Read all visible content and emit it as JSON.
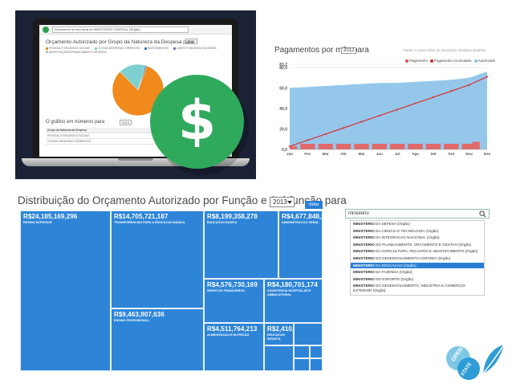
{
  "laptop": {
    "search_placeholder": "Orçamento ao seu alcance",
    "search_value": "MINISTÉRIO FEDERAL (Órgão)",
    "title": "Orçamento Autorizado por Grupo da Natureza da Despesa para",
    "year": "2013",
    "legend": [
      "PESSOAL E ENCARGOS SOCIAIS",
      "OUTRAS DESPESAS CORRENTES",
      "INVESTIMENTOS",
      "JUROS E ENCARGOS DA DÍVIDA",
      "AMORTIZAÇÃO/REFINANCIAMENTO DA DÍVIDA"
    ],
    "legend_colors": [
      "#f08a1c",
      "#7ecfcf",
      "#2e7bbf",
      "#8a6bb5",
      "#c0c0c0"
    ],
    "pie": [
      0.82,
      0.17,
      0.01
    ],
    "subtitle": "O gráfico em números para",
    "year2": "2013",
    "table_header": "Grupo da Natureza da Despesa",
    "table_rows": [
      "PESSOAL E ENCARGOS SOCIAIS",
      "OUTRAS DESPESAS CORRENTES"
    ]
  },
  "badge": {
    "icon": "dollar-icon",
    "symbol": "$",
    "color": "#2faa5d"
  },
  "payments": {
    "title": "Pagamentos por mês para",
    "year": "2012",
    "hint": "Passe o cursor sobre as áreas para visualizar detalhes",
    "legend": [
      {
        "name": "Pagamento",
        "color": "#d9534f"
      },
      {
        "name": "Pagamento Acumulado",
        "color": "#c9302c"
      },
      {
        "name": "Autorizado",
        "color": "#8fc4ea"
      }
    ]
  },
  "chart_data": {
    "type": "area",
    "title": "Pagamentos por mês para",
    "categories": [
      "Jan",
      "Fev",
      "Mar",
      "Abr",
      "Mai",
      "Jun",
      "Jul",
      "Ago",
      "Set",
      "Out",
      "Nov",
      "Dez"
    ],
    "y_ticks": [
      "0,0",
      "20,0",
      "40,0",
      "60,0",
      "80,0",
      "83,2"
    ],
    "ylim": [
      0,
      83.2
    ],
    "series": [
      {
        "name": "Autorizado",
        "type": "area",
        "values": [
          60,
          61,
          62,
          63,
          64,
          65,
          65,
          66,
          67,
          68,
          70,
          76
        ]
      },
      {
        "name": "Pagamento Acumulado",
        "type": "line",
        "values": [
          3,
          9,
          15,
          21,
          27,
          33,
          39,
          45,
          51,
          57,
          63,
          71
        ]
      },
      {
        "name": "Pagamento",
        "type": "bar",
        "values": [
          3,
          5.5,
          5.5,
          5.5,
          5.5,
          5.5,
          5.5,
          5.5,
          5.5,
          5.5,
          5.5,
          7.5
        ]
      }
    ],
    "legend_position": "top-right",
    "grid": true
  },
  "treemap": {
    "title": "Distribuição do Orçamento Autorizado por Função e Subfunção para",
    "year": "2013",
    "back_label": "Voltar",
    "cells": [
      {
        "value": "R$24,185,169,296",
        "label": "ENSINO SUPERIOR"
      },
      {
        "value": "R$14,705,721,187",
        "label": "TRANSFERENCIAS PARA A EDUCACAO BASICA"
      },
      {
        "value": "R$8,199,358,278",
        "label": "EDUCACAO BASICA"
      },
      {
        "value": "R$4,677,848,22",
        "label": "ADMINISTRACAO GERAL"
      },
      {
        "value": "R$9,463,907,636",
        "label": "ENSINO PROFISSIONAL"
      },
      {
        "value": "R$4,576,730,169",
        "label": "SERVICOS FINANCEIROS"
      },
      {
        "value": "R$4,180,701,174",
        "label": "ASSISTENCIA HOSPITALAR E AMBULATORIAL"
      },
      {
        "value": "R$4,511,764,213",
        "label": "ALIMENTACAO E NUTRICAO"
      },
      {
        "value": "R$2,410,3",
        "label": "EDUCACAO INFANTIL"
      }
    ]
  },
  "search": {
    "value": "ministerio",
    "items": [
      {
        "bold": "MINISTERIO",
        "rest": " DA DEFESA (Orgão)"
      },
      {
        "bold": "MINISTERIO",
        "rest": " DA CIENCIA E TECNOLOGIA (Orgão)"
      },
      {
        "bold": "MINISTERIO",
        "rest": " DA INTEGRACAO NACIONAL (Orgão)"
      },
      {
        "bold": "MINISTERIO",
        "rest": " DO PLANEJAMENTO, ORCAMENTO E GESTAO (Orgão)"
      },
      {
        "bold": "MINISTERIO",
        "rest": " DA AGRICULTURA, PECUARIA E ABASTECIMENTO (Orgão)"
      },
      {
        "bold": "MINISTERIO",
        "rest": " DO DESENVOLVIMENTO AGRARIO (Orgão)"
      },
      {
        "bold": "MINISTERIO",
        "rest": " DA EDUCACAO (Orgão)"
      },
      {
        "bold": "MINISTERIO",
        "rest": " DA FAZENDA (Orgão)"
      },
      {
        "bold": "MINISTERIO",
        "rest": " DO ESPORTE (Orgão)"
      },
      {
        "bold": "MINISTERIO",
        "rest": " DO DESENVOLVIMENTO, INDUSTRIA E COMERCIO EXTERIOR (Orgão)"
      }
    ],
    "active_index": 6
  },
  "logo": {
    "open": "OPEN",
    "state": "STATE"
  }
}
